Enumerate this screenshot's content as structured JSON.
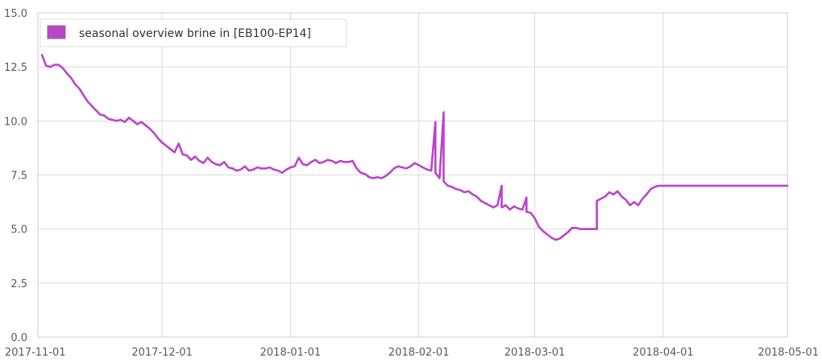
{
  "chart_data": {
    "type": "line",
    "title": "",
    "xlabel": "",
    "ylabel": "",
    "x_ticks": [
      "2017-11-01",
      "2017-12-01",
      "2018-01-01",
      "2018-02-01",
      "2018-03-01",
      "2018-04-01",
      "2018-05-01"
    ],
    "y_ticks": [
      "0.0",
      "2.5",
      "5.0",
      "7.5",
      "10.0",
      "12.5",
      "15.0"
    ],
    "xlim": [
      "2017-11-01",
      "2018-05-01"
    ],
    "ylim": [
      0,
      15
    ],
    "grid": true,
    "legend_position": "top-left",
    "series": [
      {
        "name": "seasonal overview brine in [EB100-EP14]",
        "color": "#bb44cc",
        "points": [
          [
            "2017-11-02",
            13.05
          ],
          [
            "2017-11-03",
            12.55
          ],
          [
            "2017-11-04",
            12.5
          ],
          [
            "2017-11-05",
            12.6
          ],
          [
            "2017-11-06",
            12.6
          ],
          [
            "2017-11-07",
            12.45
          ],
          [
            "2017-11-08",
            12.2
          ],
          [
            "2017-11-09",
            12.0
          ],
          [
            "2017-11-10",
            11.7
          ],
          [
            "2017-11-11",
            11.5
          ],
          [
            "2017-11-12",
            11.2
          ],
          [
            "2017-11-13",
            10.9
          ],
          [
            "2017-11-14",
            10.7
          ],
          [
            "2017-11-15",
            10.5
          ],
          [
            "2017-11-16",
            10.3
          ],
          [
            "2017-11-17",
            10.25
          ],
          [
            "2017-11-18",
            10.1
          ],
          [
            "2017-11-19",
            10.05
          ],
          [
            "2017-11-20",
            10.0
          ],
          [
            "2017-11-21",
            10.05
          ],
          [
            "2017-11-22",
            9.95
          ],
          [
            "2017-11-23",
            10.15
          ],
          [
            "2017-11-24",
            10.0
          ],
          [
            "2017-11-25",
            9.85
          ],
          [
            "2017-11-26",
            9.95
          ],
          [
            "2017-11-27",
            9.8
          ],
          [
            "2017-11-28",
            9.65
          ],
          [
            "2017-11-29",
            9.45
          ],
          [
            "2017-11-30",
            9.2
          ],
          [
            "2017-12-01",
            9.0
          ],
          [
            "2017-12-02",
            8.85
          ],
          [
            "2017-12-03",
            8.7
          ],
          [
            "2017-12-04",
            8.55
          ],
          [
            "2017-12-05",
            8.95
          ],
          [
            "2017-12-06",
            8.45
          ],
          [
            "2017-12-07",
            8.4
          ],
          [
            "2017-12-08",
            8.2
          ],
          [
            "2017-12-09",
            8.35
          ],
          [
            "2017-12-10",
            8.15
          ],
          [
            "2017-12-11",
            8.05
          ],
          [
            "2017-12-12",
            8.3
          ],
          [
            "2017-12-13",
            8.1
          ],
          [
            "2017-12-14",
            8.0
          ],
          [
            "2017-12-15",
            7.95
          ],
          [
            "2017-12-16",
            8.1
          ],
          [
            "2017-12-17",
            7.85
          ],
          [
            "2017-12-18",
            7.8
          ],
          [
            "2017-12-19",
            7.7
          ],
          [
            "2017-12-20",
            7.75
          ],
          [
            "2017-12-21",
            7.9
          ],
          [
            "2017-12-22",
            7.7
          ],
          [
            "2017-12-23",
            7.75
          ],
          [
            "2017-12-24",
            7.85
          ],
          [
            "2017-12-25",
            7.8
          ],
          [
            "2017-12-26",
            7.8
          ],
          [
            "2017-12-27",
            7.85
          ],
          [
            "2017-12-28",
            7.75
          ],
          [
            "2017-12-29",
            7.7
          ],
          [
            "2017-12-30",
            7.6
          ],
          [
            "2017-12-31",
            7.75
          ],
          [
            "2018-01-01",
            7.85
          ],
          [
            "2018-01-02",
            7.9
          ],
          [
            "2018-01-03",
            8.3
          ],
          [
            "2018-01-04",
            8.0
          ],
          [
            "2018-01-05",
            7.95
          ],
          [
            "2018-01-06",
            8.1
          ],
          [
            "2018-01-07",
            8.2
          ],
          [
            "2018-01-08",
            8.05
          ],
          [
            "2018-01-09",
            8.1
          ],
          [
            "2018-01-10",
            8.2
          ],
          [
            "2018-01-11",
            8.15
          ],
          [
            "2018-01-12",
            8.05
          ],
          [
            "2018-01-13",
            8.15
          ],
          [
            "2018-01-14",
            8.1
          ],
          [
            "2018-01-15",
            8.1
          ],
          [
            "2018-01-16",
            8.15
          ],
          [
            "2018-01-17",
            7.8
          ],
          [
            "2018-01-18",
            7.6
          ],
          [
            "2018-01-19",
            7.55
          ],
          [
            "2018-01-20",
            7.4
          ],
          [
            "2018-01-21",
            7.35
          ],
          [
            "2018-01-22",
            7.4
          ],
          [
            "2018-01-23",
            7.35
          ],
          [
            "2018-01-24",
            7.45
          ],
          [
            "2018-01-25",
            7.6
          ],
          [
            "2018-01-26",
            7.8
          ],
          [
            "2018-01-27",
            7.9
          ],
          [
            "2018-01-28",
            7.85
          ],
          [
            "2018-01-29",
            7.8
          ],
          [
            "2018-01-30",
            7.9
          ],
          [
            "2018-01-31",
            8.05
          ],
          [
            "2018-02-01",
            7.95
          ],
          [
            "2018-02-02",
            7.85
          ],
          [
            "2018-02-03",
            7.75
          ],
          [
            "2018-02-04",
            7.7
          ],
          [
            "2018-02-05",
            9.95
          ],
          [
            "2018-02-05",
            7.6
          ],
          [
            "2018-02-06",
            7.35
          ],
          [
            "2018-02-07",
            10.4
          ],
          [
            "2018-02-07",
            7.2
          ],
          [
            "2018-02-08",
            7.0
          ],
          [
            "2018-02-09",
            6.95
          ],
          [
            "2018-02-10",
            6.85
          ],
          [
            "2018-02-11",
            6.8
          ],
          [
            "2018-02-12",
            6.7
          ],
          [
            "2018-02-13",
            6.75
          ],
          [
            "2018-02-14",
            6.6
          ],
          [
            "2018-02-15",
            6.5
          ],
          [
            "2018-02-16",
            6.3
          ],
          [
            "2018-02-17",
            6.2
          ],
          [
            "2018-02-18",
            6.1
          ],
          [
            "2018-02-19",
            6.0
          ],
          [
            "2018-02-20",
            6.1
          ],
          [
            "2018-02-21",
            7.0
          ],
          [
            "2018-02-21",
            6.0
          ],
          [
            "2018-02-22",
            6.1
          ],
          [
            "2018-02-23",
            5.9
          ],
          [
            "2018-02-24",
            6.05
          ],
          [
            "2018-02-25",
            5.95
          ],
          [
            "2018-02-26",
            5.9
          ],
          [
            "2018-02-27",
            6.45
          ],
          [
            "2018-02-27",
            5.8
          ],
          [
            "2018-02-28",
            5.75
          ],
          [
            "2018-03-01",
            5.5
          ],
          [
            "2018-03-02",
            5.1
          ],
          [
            "2018-03-03",
            4.9
          ],
          [
            "2018-03-04",
            4.75
          ],
          [
            "2018-03-05",
            4.6
          ],
          [
            "2018-03-06",
            4.5
          ],
          [
            "2018-03-07",
            4.55
          ],
          [
            "2018-03-08",
            4.7
          ],
          [
            "2018-03-09",
            4.85
          ],
          [
            "2018-03-10",
            5.05
          ],
          [
            "2018-03-11",
            5.05
          ],
          [
            "2018-03-12",
            5.0
          ],
          [
            "2018-03-16",
            5.0
          ],
          [
            "2018-03-16",
            6.3
          ],
          [
            "2018-03-18",
            6.5
          ],
          [
            "2018-03-19",
            6.7
          ],
          [
            "2018-03-20",
            6.6
          ],
          [
            "2018-03-21",
            6.75
          ],
          [
            "2018-03-22",
            6.5
          ],
          [
            "2018-03-23",
            6.35
          ],
          [
            "2018-03-24",
            6.1
          ],
          [
            "2018-03-25",
            6.25
          ],
          [
            "2018-03-26",
            6.1
          ],
          [
            "2018-03-27",
            6.4
          ],
          [
            "2018-03-28",
            6.6
          ],
          [
            "2018-03-29",
            6.85
          ],
          [
            "2018-03-30",
            6.95
          ],
          [
            "2018-03-31",
            7.0
          ],
          [
            "2018-05-01",
            7.0
          ]
        ]
      }
    ]
  }
}
